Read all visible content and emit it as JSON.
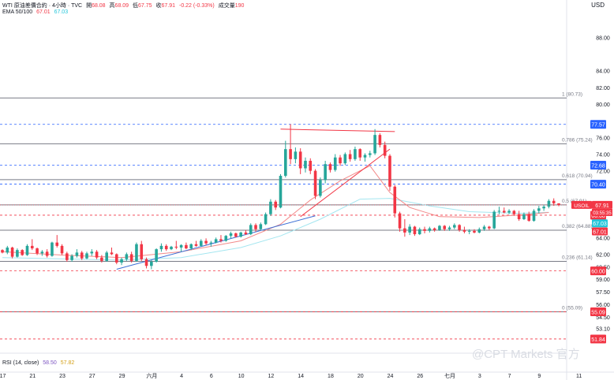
{
  "header": {
    "symbol_line": "WTI 原油差價合約 · 4小時 · TVC",
    "open_label": "開",
    "open": "68.08",
    "high_label": "高",
    "high": "68.09",
    "low_label": "低",
    "low": "67.75",
    "close_label": "收",
    "close": "67.91",
    "change": "-0.22 (-0.33%)",
    "volume_label": "成交量",
    "volume": "190",
    "ema_label": "EMA 50/100",
    "ema50": "67.01",
    "ema100": "67.03"
  },
  "currency": "USD",
  "rsi": {
    "label": "RSI (14, close)",
    "value1": "58.50",
    "value2": "57.82"
  },
  "watermark": "@CPT Markets 官方",
  "colors": {
    "up": "#26a69a",
    "down": "#f23645",
    "ema50": "#f38a8a",
    "ema100": "#a4e6f0",
    "trend": "#3c6fd6",
    "fib": "#787b86",
    "dash_blue": "#2962ff",
    "dash_red": "#f23645"
  },
  "chart_data": {
    "type": "candlestick",
    "title": "WTI 原油差價合約 · 4小時 · TVC",
    "ylim": [
      50.7,
      90.4
    ],
    "y_ticks": [
      88.0,
      84.0,
      82.0,
      80.0,
      76.0,
      74.0,
      72.0,
      64.0,
      62.0,
      60.5,
      59.0,
      57.5,
      56.0,
      54.5,
      53.1
    ],
    "x_ticks": [
      {
        "label": "17",
        "i": 0
      },
      {
        "label": "21",
        "i": 6
      },
      {
        "label": "23",
        "i": 12
      },
      {
        "label": "27",
        "i": 18
      },
      {
        "label": "29",
        "i": 24
      },
      {
        "label": "六月",
        "i": 30
      },
      {
        "label": "4",
        "i": 36
      },
      {
        "label": "6",
        "i": 42
      },
      {
        "label": "10",
        "i": 48
      },
      {
        "label": "12",
        "i": 54
      },
      {
        "label": "14",
        "i": 60
      },
      {
        "label": "18",
        "i": 66
      },
      {
        "label": "20",
        "i": 72
      },
      {
        "label": "24",
        "i": 78
      },
      {
        "label": "26",
        "i": 84
      },
      {
        "label": "七月",
        "i": 90
      },
      {
        "label": "3",
        "i": 96
      },
      {
        "label": "7",
        "i": 102
      },
      {
        "label": "9",
        "i": 108
      },
      {
        "label": "11",
        "i": 116
      }
    ],
    "fib_levels": [
      {
        "label": "1 (80.73)",
        "value": 80.73
      },
      {
        "label": "0.786 (75.24)",
        "value": 75.24
      },
      {
        "label": "0.618 (70.94)",
        "value": 70.94
      },
      {
        "label": "0.5 (67.91)",
        "value": 67.91
      },
      {
        "label": "0.382 (64.88)",
        "value": 64.88
      },
      {
        "label": "0.236 (61.14)",
        "value": 61.14
      },
      {
        "label": "0 (55.09)",
        "value": 55.09
      }
    ],
    "price_lines": [
      {
        "value": 77.57,
        "label": "77.57",
        "style": "blue"
      },
      {
        "value": 72.68,
        "label": "72.68",
        "style": "blue"
      },
      {
        "value": 70.4,
        "label": "70.40",
        "style": "blue"
      },
      {
        "value": 66.68,
        "label": "66.68",
        "style": "red"
      },
      {
        "value": 60.0,
        "label": "60.00",
        "style": "red"
      },
      {
        "value": 55.09,
        "label": "55.09",
        "style": "red"
      },
      {
        "value": 51.84,
        "label": "51.84",
        "style": "red"
      }
    ],
    "price_tags": [
      {
        "label": "USOIL",
        "value": 67.91
      },
      {
        "label": "67.91",
        "value": 67.91
      },
      {
        "label": "03:55:35",
        "value": 67.91
      },
      {
        "label": "67.03",
        "value": 67.03
      },
      {
        "label": "67.01",
        "value": 67.01
      }
    ],
    "ema50": [
      [
        0,
        62.3
      ],
      [
        12,
        61.9
      ],
      [
        24,
        61.6
      ],
      [
        36,
        62.3
      ],
      [
        48,
        63.6
      ],
      [
        56,
        65.6
      ],
      [
        62,
        68.5
      ],
      [
        68,
        70.8
      ],
      [
        74,
        72.6
      ],
      [
        78,
        69.4
      ],
      [
        82,
        67.6
      ],
      [
        88,
        66.5
      ],
      [
        96,
        66.4
      ],
      [
        104,
        66.7
      ],
      [
        110,
        67.01
      ]
    ],
    "ema100": [
      [
        0,
        61.6
      ],
      [
        24,
        61.3
      ],
      [
        36,
        61.6
      ],
      [
        48,
        62.8
      ],
      [
        56,
        64.2
      ],
      [
        64,
        66.2
      ],
      [
        72,
        68.6
      ],
      [
        78,
        68.7
      ],
      [
        86,
        67.8
      ],
      [
        94,
        67.1
      ],
      [
        104,
        66.9
      ],
      [
        110,
        67.03
      ]
    ],
    "trendlines": [
      {
        "from": [
          23,
          60.2
        ],
        "to": [
          63,
          66.6
        ],
        "color": "blue"
      },
      {
        "from": [
          56,
          77.0
        ],
        "to": [
          79,
          76.7
        ],
        "color": "red"
      },
      {
        "from": [
          60,
          66.5
        ],
        "to": [
          78,
          74.6
        ],
        "color": "red"
      }
    ],
    "candles": [
      [
        62.5,
        62.6,
        62.1,
        62.2
      ],
      [
        62.2,
        63.0,
        62.0,
        62.8
      ],
      [
        62.8,
        62.9,
        61.5,
        61.7
      ],
      [
        61.7,
        62.7,
        61.6,
        62.5
      ],
      [
        62.5,
        62.6,
        61.8,
        61.9
      ],
      [
        61.9,
        63.2,
        61.8,
        63.0
      ],
      [
        63.0,
        63.8,
        62.5,
        62.7
      ],
      [
        62.7,
        62.8,
        61.9,
        62.1
      ],
      [
        62.1,
        62.5,
        61.8,
        62.3
      ],
      [
        62.3,
        62.6,
        61.6,
        61.8
      ],
      [
        61.8,
        63.5,
        61.7,
        63.4
      ],
      [
        63.4,
        64.3,
        62.8,
        63.0
      ],
      [
        63.0,
        63.2,
        61.9,
        62.1
      ],
      [
        62.1,
        62.3,
        61.1,
        61.3
      ],
      [
        61.3,
        62.0,
        61.1,
        61.8
      ],
      [
        61.8,
        62.6,
        61.6,
        62.2
      ],
      [
        62.2,
        62.4,
        61.3,
        61.5
      ],
      [
        61.5,
        62.3,
        61.4,
        62.1
      ],
      [
        62.1,
        62.6,
        61.8,
        62.3
      ],
      [
        62.3,
        62.5,
        61.4,
        61.6
      ],
      [
        61.6,
        61.9,
        61.0,
        61.2
      ],
      [
        61.2,
        62.4,
        61.1,
        62.2
      ],
      [
        62.2,
        62.8,
        61.9,
        62.0
      ],
      [
        62.0,
        62.1,
        60.8,
        61.0
      ],
      [
        61.0,
        61.6,
        60.7,
        61.4
      ],
      [
        61.4,
        62.2,
        61.2,
        62.0
      ],
      [
        62.0,
        62.3,
        61.0,
        61.2
      ],
      [
        61.2,
        63.4,
        61.1,
        63.2
      ],
      [
        63.2,
        63.6,
        61.2,
        61.4
      ],
      [
        61.4,
        61.6,
        60.3,
        60.6
      ],
      [
        60.6,
        61.3,
        60.2,
        61.1
      ],
      [
        61.1,
        62.7,
        61.0,
        62.6
      ],
      [
        62.6,
        63.3,
        62.3,
        63.0
      ],
      [
        63.0,
        63.2,
        62.4,
        62.6
      ],
      [
        62.6,
        63.0,
        62.5,
        62.9
      ],
      [
        62.9,
        63.6,
        62.6,
        62.8
      ],
      [
        62.8,
        63.2,
        62.3,
        63.1
      ],
      [
        63.1,
        63.4,
        62.6,
        62.7
      ],
      [
        62.7,
        63.3,
        62.5,
        63.2
      ],
      [
        63.2,
        63.6,
        62.9,
        63.0
      ],
      [
        63.0,
        63.8,
        62.9,
        63.6
      ],
      [
        63.6,
        63.9,
        63.1,
        63.3
      ],
      [
        63.3,
        63.6,
        62.9,
        63.4
      ],
      [
        63.4,
        64.0,
        63.3,
        63.8
      ],
      [
        63.8,
        64.3,
        63.4,
        63.6
      ],
      [
        63.6,
        64.3,
        63.5,
        64.2
      ],
      [
        64.2,
        64.7,
        63.9,
        64.5
      ],
      [
        64.5,
        64.6,
        64.0,
        64.1
      ],
      [
        64.1,
        64.7,
        64.0,
        64.6
      ],
      [
        64.6,
        64.9,
        64.3,
        64.4
      ],
      [
        64.4,
        65.7,
        64.3,
        65.5
      ],
      [
        65.5,
        65.7,
        64.7,
        65.0
      ],
      [
        65.0,
        65.8,
        64.9,
        65.6
      ],
      [
        65.6,
        67.0,
        65.5,
        66.8
      ],
      [
        66.8,
        68.6,
        66.6,
        68.3
      ],
      [
        68.3,
        68.5,
        67.3,
        67.6
      ],
      [
        67.6,
        71.6,
        67.5,
        71.4
      ],
      [
        71.4,
        75.6,
        71.2,
        74.6
      ],
      [
        74.6,
        77.6,
        72.8,
        73.4
      ],
      [
        73.4,
        74.8,
        72.9,
        74.3
      ],
      [
        74.3,
        74.7,
        71.6,
        72.3
      ],
      [
        72.3,
        73.6,
        71.8,
        73.2
      ],
      [
        73.2,
        73.5,
        71.6,
        72.0
      ],
      [
        72.0,
        72.2,
        68.6,
        69.0
      ],
      [
        69.0,
        71.2,
        68.8,
        70.9
      ],
      [
        70.9,
        73.2,
        70.5,
        72.8
      ],
      [
        72.8,
        73.0,
        71.8,
        72.1
      ],
      [
        72.1,
        74.0,
        71.9,
        73.6
      ],
      [
        73.6,
        73.9,
        72.6,
        72.9
      ],
      [
        72.9,
        74.2,
        72.7,
        74.0
      ],
      [
        74.0,
        74.5,
        73.1,
        73.4
      ],
      [
        73.4,
        74.9,
        73.2,
        74.6
      ],
      [
        74.6,
        74.7,
        73.2,
        73.6
      ],
      [
        73.6,
        74.1,
        73.1,
        73.9
      ],
      [
        73.9,
        74.4,
        73.6,
        74.1
      ],
      [
        74.1,
        77.0,
        73.9,
        76.3
      ],
      [
        76.3,
        76.5,
        74.8,
        75.1
      ],
      [
        75.1,
        75.5,
        73.5,
        73.8
      ],
      [
        73.8,
        74.0,
        69.6,
        70.1
      ],
      [
        70.1,
        70.3,
        66.4,
        66.9
      ],
      [
        66.9,
        67.1,
        64.7,
        65.1
      ],
      [
        65.1,
        66.2,
        64.1,
        64.6
      ],
      [
        64.6,
        65.6,
        64.3,
        65.3
      ],
      [
        65.3,
        65.4,
        64.2,
        64.4
      ],
      [
        64.4,
        65.2,
        64.3,
        65.0
      ],
      [
        65.0,
        65.3,
        64.5,
        64.8
      ],
      [
        64.8,
        65.3,
        64.6,
        65.1
      ],
      [
        65.1,
        65.2,
        64.7,
        64.9
      ],
      [
        64.9,
        65.5,
        64.8,
        65.4
      ],
      [
        65.4,
        65.5,
        64.8,
        65.0
      ],
      [
        65.0,
        65.4,
        64.8,
        65.2
      ],
      [
        65.2,
        65.7,
        65.0,
        65.5
      ],
      [
        65.5,
        65.6,
        64.7,
        64.9
      ],
      [
        64.9,
        65.3,
        64.5,
        64.7
      ],
      [
        64.7,
        65.0,
        64.4,
        64.8
      ],
      [
        64.8,
        65.0,
        64.5,
        64.6
      ],
      [
        64.6,
        65.2,
        64.5,
        65.0
      ],
      [
        65.0,
        65.5,
        64.8,
        65.3
      ],
      [
        65.3,
        65.4,
        64.9,
        65.1
      ],
      [
        65.1,
        67.3,
        65.0,
        67.1
      ],
      [
        67.1,
        67.7,
        66.8,
        67.2
      ],
      [
        67.2,
        67.6,
        66.9,
        67.0
      ],
      [
        67.0,
        67.4,
        66.8,
        67.2
      ],
      [
        67.2,
        67.3,
        66.6,
        66.8
      ],
      [
        66.8,
        67.2,
        66.0,
        66.2
      ],
      [
        66.2,
        67.0,
        66.1,
        66.8
      ],
      [
        66.8,
        67.1,
        65.9,
        66.0
      ],
      [
        66.0,
        67.4,
        65.9,
        67.2
      ],
      [
        67.2,
        67.8,
        66.9,
        67.5
      ],
      [
        67.5,
        67.9,
        67.2,
        67.7
      ],
      [
        67.7,
        68.6,
        67.5,
        68.4
      ],
      [
        68.4,
        68.7,
        67.8,
        68.1
      ],
      [
        68.1,
        68.1,
        67.75,
        67.91
      ]
    ]
  }
}
